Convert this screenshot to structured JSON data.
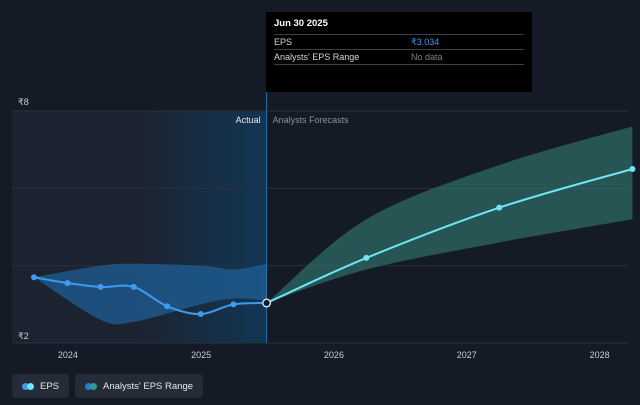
{
  "tooltip": {
    "date": "Jun 30 2025",
    "rows": [
      {
        "label": "EPS",
        "value": "₹3.034"
      },
      {
        "label": "Analysts' EPS Range",
        "value": "No data"
      }
    ]
  },
  "legend": [
    {
      "label": "EPS",
      "colors": [
        "#3d9bf0",
        "#6ee6f5"
      ]
    },
    {
      "label": "Analysts' EPS Range",
      "colors": [
        "#2a7bd0",
        "#2a9e93"
      ]
    }
  ],
  "colors": {
    "eps": "#3d9bf0",
    "forecast": "#6ee6f5",
    "range_actual": "#1f5f95",
    "range_forecast": "#2d6a63",
    "grid": "#2a303b",
    "past_band": "#1c2330",
    "actual_band": "#123655"
  },
  "chart_data": {
    "type": "line",
    "y_unit": "₹",
    "ylim": [
      2,
      8
    ],
    "y_tick_labels": [
      "₹8",
      "₹2"
    ],
    "x_tick_labels": [
      "2024",
      "2025",
      "2026",
      "2027",
      "2028"
    ],
    "divider_labels": {
      "actual": "Actual",
      "forecast": "Analysts Forecasts"
    },
    "grid": true,
    "series": [
      {
        "name": "EPS",
        "x": [
          "2023-09-30",
          "2023-12-31",
          "2024-03-31",
          "2024-06-30",
          "2024-09-30",
          "2024-12-31",
          "2025-03-31",
          "2025-06-30"
        ],
        "values": [
          3.7,
          3.55,
          3.45,
          3.45,
          2.95,
          2.75,
          3.0,
          3.034
        ]
      },
      {
        "name": "Analysts Forecasts",
        "x": [
          "2025-06-30",
          "2026-03-31",
          "2027-03-31",
          "2028-03-31"
        ],
        "values": [
          3.034,
          4.2,
          5.5,
          6.5
        ]
      }
    ],
    "range_actual": {
      "x": [
        "2023-09-30",
        "2024-03-31",
        "2024-06-30",
        "2024-12-31",
        "2025-03-31",
        "2025-06-30"
      ],
      "high": [
        3.7,
        4.0,
        4.05,
        4.0,
        3.9,
        4.05
      ],
      "low": [
        3.7,
        2.6,
        2.55,
        3.0,
        3.15,
        3.1
      ]
    },
    "range_forecast": {
      "x": [
        "2025-06-30",
        "2026-03-31",
        "2027-03-31",
        "2028-03-31"
      ],
      "high": [
        3.034,
        5.2,
        6.6,
        7.6
      ],
      "low": [
        3.034,
        3.9,
        4.6,
        5.2
      ]
    }
  }
}
